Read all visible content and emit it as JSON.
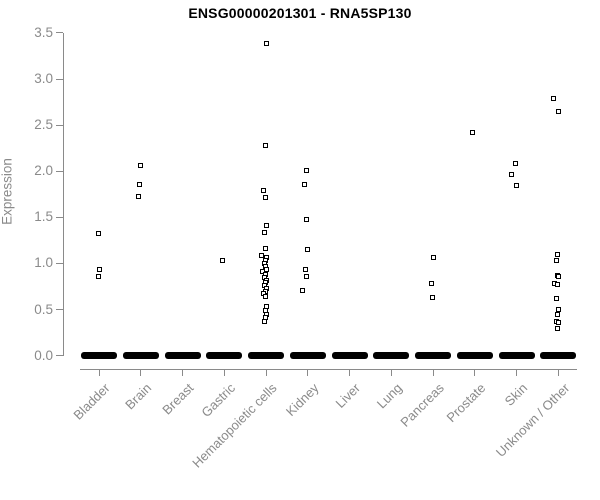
{
  "colors": {
    "axis": "#8a8a8a",
    "tick_label": "#8a8a8a",
    "title": "#000000",
    "marker": "#000000",
    "zero_bar": "#000000",
    "background": "#ffffff"
  },
  "chart_data": {
    "type": "scatter",
    "variant": "strip-plot",
    "title": "ENSG00000201301 - RNA5SP130",
    "xlabel": "",
    "ylabel": "Expression",
    "ylim": [
      0,
      3.5
    ],
    "yticks": [
      "0.0",
      "0.5",
      "1.0",
      "1.5",
      "2.0",
      "2.5",
      "3.0",
      "3.5"
    ],
    "grid": false,
    "legend": false,
    "marker": "open-square",
    "x_label_rotation_deg": 45,
    "categories": [
      "Bladder",
      "Brain",
      "Breast",
      "Gastric",
      "Hematopoietic cells",
      "Kidney",
      "Liver",
      "Lung",
      "Pancreas",
      "Prostate",
      "Skin",
      "Unknown / Other"
    ],
    "series": [
      {
        "category": "Bladder",
        "zero_cluster_bar": true,
        "values": [
          1.32,
          0.94,
          0.86
        ]
      },
      {
        "category": "Brain",
        "zero_cluster_bar": true,
        "values": [
          2.06,
          1.86,
          1.73
        ]
      },
      {
        "category": "Breast",
        "zero_cluster_bar": true,
        "values": []
      },
      {
        "category": "Gastric",
        "zero_cluster_bar": true,
        "values": [
          1.03
        ]
      },
      {
        "category": "Hematopoietic cells",
        "zero_cluster_bar": true,
        "values": [
          3.39,
          2.28,
          1.79,
          1.72,
          1.41,
          1.34,
          1.16,
          1.09,
          1.06,
          1.03,
          1.0,
          0.97,
          0.94,
          0.91,
          0.88,
          0.85,
          0.82,
          0.79,
          0.76,
          0.73,
          0.7,
          0.67,
          0.64,
          0.53,
          0.49,
          0.45,
          0.41,
          0.37
        ]
      },
      {
        "category": "Kidney",
        "zero_cluster_bar": true,
        "values": [
          2.01,
          1.86,
          1.48,
          1.15,
          0.93,
          0.86,
          0.71
        ]
      },
      {
        "category": "Liver",
        "zero_cluster_bar": true,
        "values": []
      },
      {
        "category": "Lung",
        "zero_cluster_bar": true,
        "values": []
      },
      {
        "category": "Pancreas",
        "zero_cluster_bar": true,
        "values": [
          1.06,
          0.78,
          0.63
        ]
      },
      {
        "category": "Prostate",
        "zero_cluster_bar": true,
        "values": [
          2.42
        ]
      },
      {
        "category": "Skin",
        "zero_cluster_bar": true,
        "values": [
          2.08,
          1.96,
          1.85
        ]
      },
      {
        "category": "Unknown / Other",
        "zero_cluster_bar": true,
        "values": [
          2.79,
          2.65,
          1.1,
          1.03,
          0.87,
          0.86,
          0.78,
          0.77,
          0.62,
          0.5,
          0.45,
          0.37,
          0.36,
          0.3
        ]
      }
    ]
  }
}
